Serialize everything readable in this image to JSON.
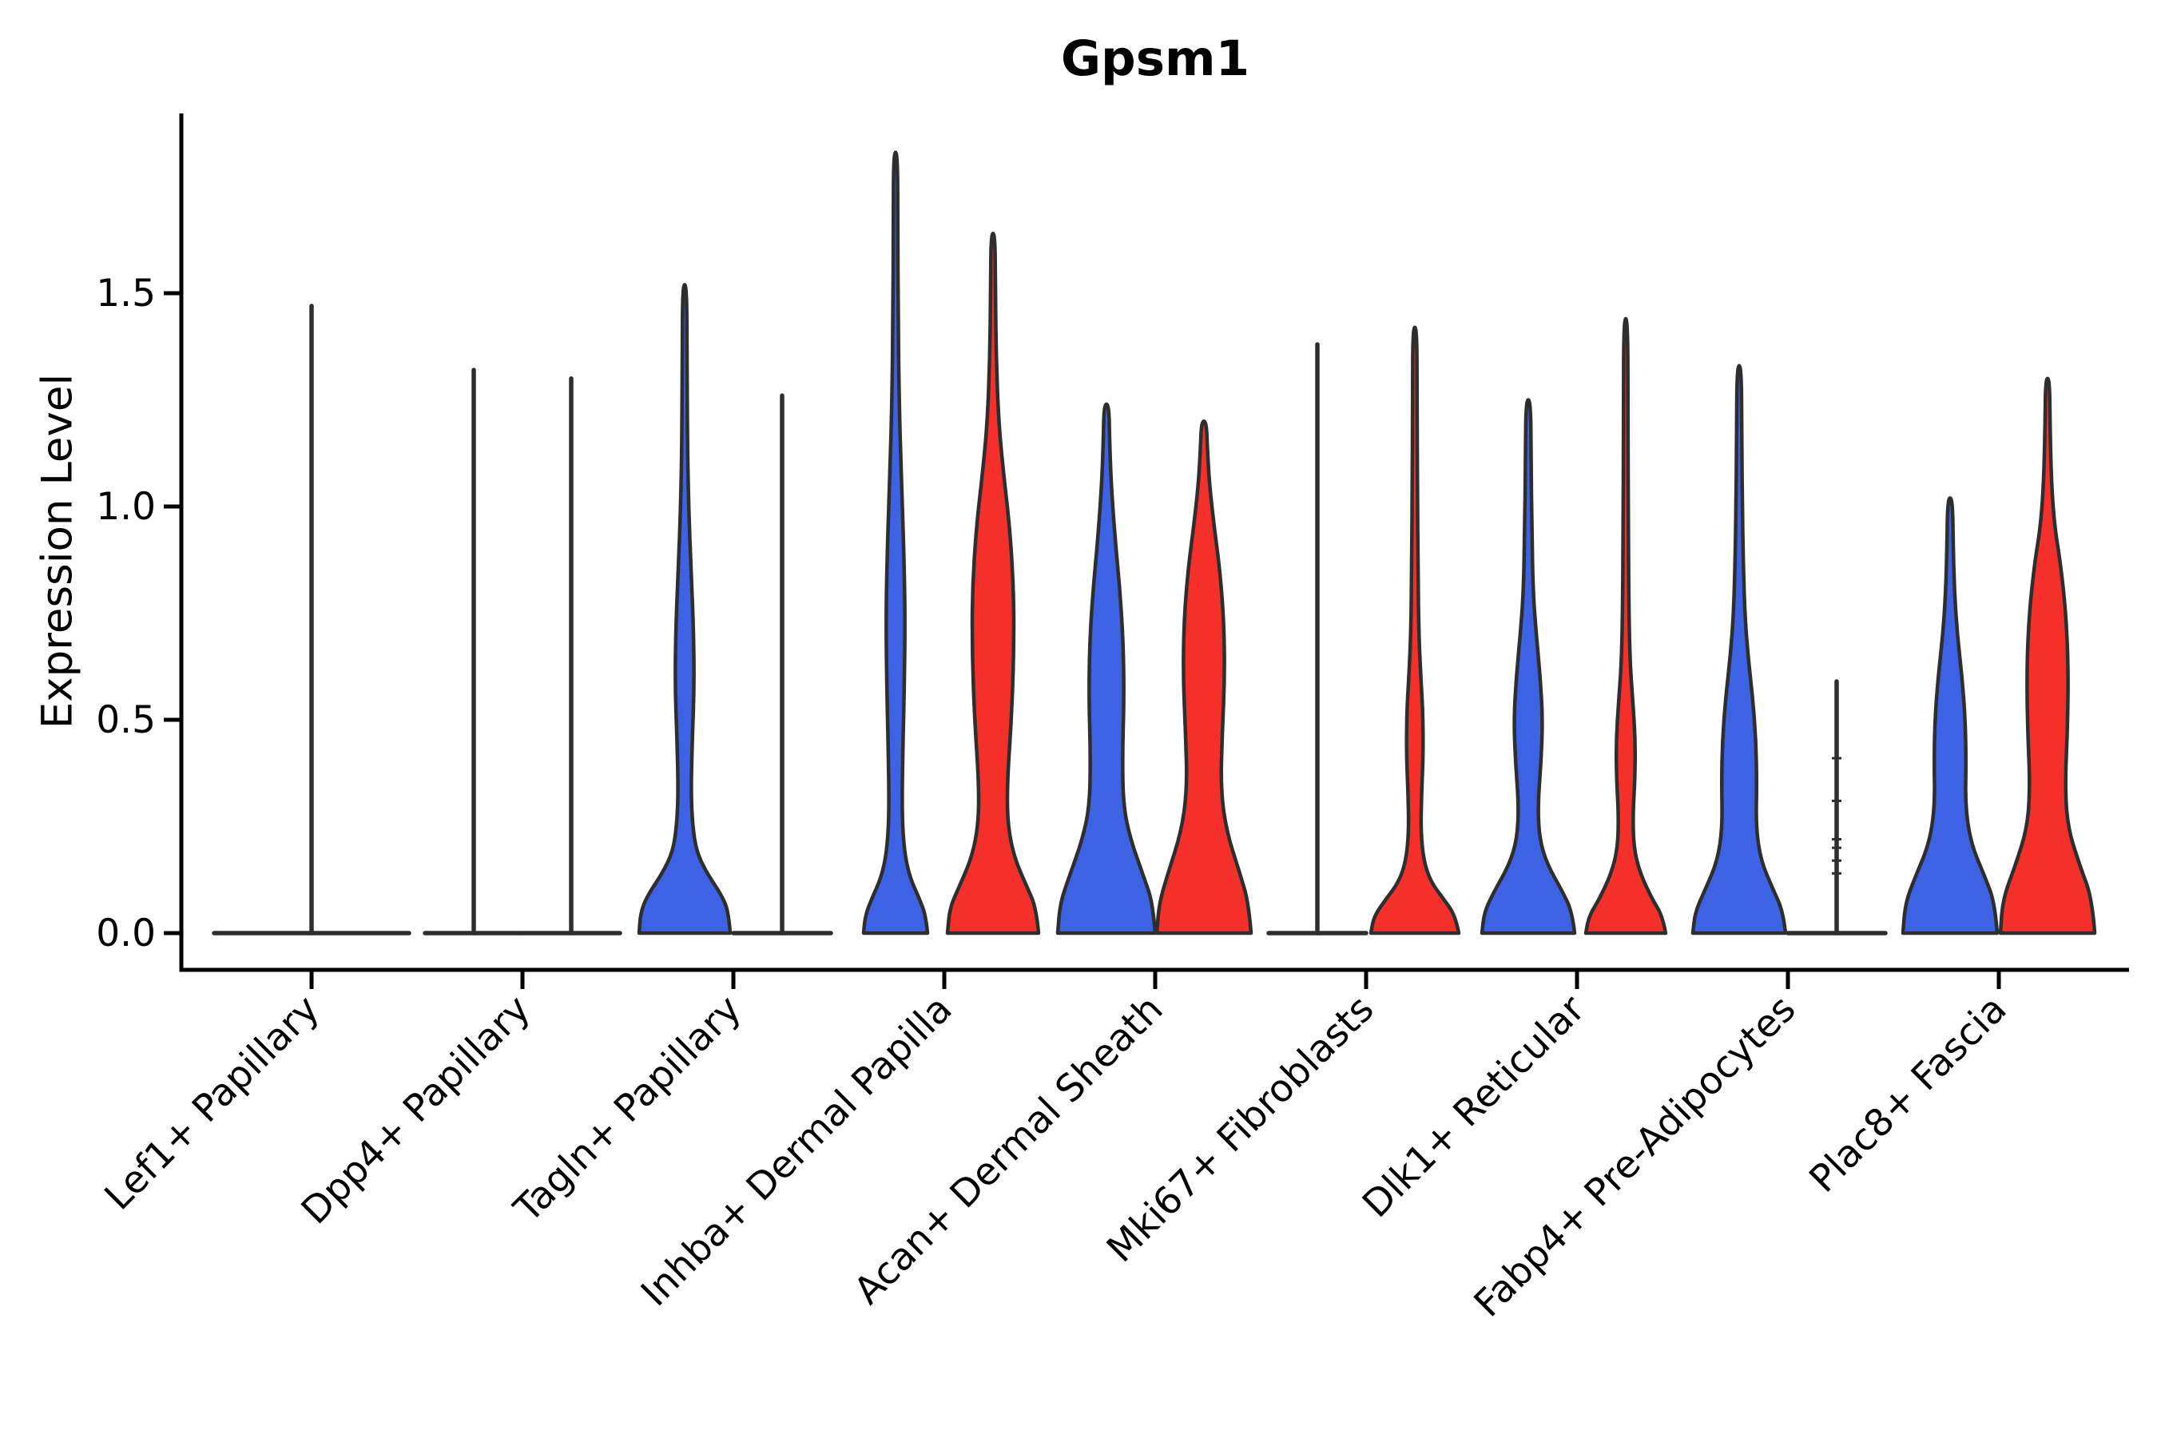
{
  "chart_data": {
    "type": "violin",
    "title": "Gpsm1",
    "xlabel": "",
    "ylabel": "Expression Level",
    "ylim": [
      0,
      1.93
    ],
    "yticks": [
      0,
      0.5,
      1.0,
      1.5
    ],
    "ytick_labels": [
      "0.0",
      "0.5",
      "1.0",
      "1.5"
    ],
    "grid": false,
    "legend": false,
    "colors": {
      "blue": "#3D62E3",
      "red": "#F5302A",
      "outline": "#2E2E2E"
    },
    "categories": [
      "Lef1+ Papillary",
      "Dpp4+ Papillary",
      "Tagln+ Papillary",
      "Inhba+ Dermal Papilla",
      "Acan+ Dermal Sheath",
      "Mki67+ Fibroblasts",
      "Dlk1+ Reticular",
      "Fabp4+ Pre-Adipocytes",
      "Plac8+ Fascia"
    ],
    "groups": [
      {
        "category": "Lef1+ Papillary",
        "violins": [
          {
            "series": "single",
            "position": "full",
            "kind": "flat",
            "max": 1.47
          }
        ]
      },
      {
        "category": "Dpp4+ Papillary",
        "violins": [
          {
            "series": "blue",
            "position": "left",
            "kind": "flat",
            "max": 1.32
          },
          {
            "series": "red",
            "position": "right",
            "kind": "flat",
            "max": 1.3
          }
        ]
      },
      {
        "category": "Tagln+ Papillary",
        "violins": [
          {
            "series": "blue",
            "position": "left",
            "kind": "shape",
            "max": 1.52,
            "profile": [
              [
                0,
                57
              ],
              [
                0.05,
                55
              ],
              [
                0.09,
                46
              ],
              [
                0.14,
                28
              ],
              [
                0.19,
                15
              ],
              [
                0.25,
                10
              ],
              [
                0.33,
                8
              ],
              [
                0.45,
                9.5
              ],
              [
                0.58,
                12
              ],
              [
                0.72,
                11
              ],
              [
                0.85,
                8
              ],
              [
                1.0,
                5
              ],
              [
                1.15,
                3.5
              ],
              [
                1.35,
                3
              ],
              [
                1.52,
                2.5
              ]
            ]
          },
          {
            "series": "red",
            "position": "right",
            "kind": "flat",
            "max": 1.26
          }
        ]
      },
      {
        "category": "Inhba+ Dermal Papilla",
        "violins": [
          {
            "series": "blue",
            "position": "left",
            "kind": "shape",
            "max": 1.83,
            "profile": [
              [
                0,
                40
              ],
              [
                0.04,
                38
              ],
              [
                0.08,
                30
              ],
              [
                0.13,
                18
              ],
              [
                0.19,
                11
              ],
              [
                0.28,
                8
              ],
              [
                0.42,
                9
              ],
              [
                0.58,
                11
              ],
              [
                0.75,
                12
              ],
              [
                0.92,
                10
              ],
              [
                1.08,
                7
              ],
              [
                1.25,
                4.5
              ],
              [
                1.45,
                3.2
              ],
              [
                1.65,
                2.8
              ],
              [
                1.83,
                2.5
              ]
            ]
          },
          {
            "series": "red",
            "position": "right",
            "kind": "shape",
            "max": 1.64,
            "profile": [
              [
                0,
                57
              ],
              [
                0.06,
                54
              ],
              [
                0.11,
                42
              ],
              [
                0.18,
                26
              ],
              [
                0.26,
                18
              ],
              [
                0.36,
                18
              ],
              [
                0.5,
                23
              ],
              [
                0.65,
                26
              ],
              [
                0.8,
                26
              ],
              [
                0.95,
                21
              ],
              [
                1.08,
                13
              ],
              [
                1.2,
                7
              ],
              [
                1.35,
                4
              ],
              [
                1.5,
                3
              ],
              [
                1.64,
                2.5
              ]
            ]
          }
        ]
      },
      {
        "category": "Acan+ Dermal Sheath",
        "violins": [
          {
            "series": "blue",
            "position": "left",
            "kind": "shape",
            "max": 1.24,
            "profile": [
              [
                0,
                61
              ],
              [
                0.07,
                58
              ],
              [
                0.13,
                47
              ],
              [
                0.22,
                30
              ],
              [
                0.3,
                21
              ],
              [
                0.42,
                20
              ],
              [
                0.55,
                22
              ],
              [
                0.68,
                21
              ],
              [
                0.8,
                17
              ],
              [
                0.92,
                11
              ],
              [
                1.05,
                6
              ],
              [
                1.15,
                4
              ],
              [
                1.24,
                3
              ]
            ]
          },
          {
            "series": "red",
            "position": "right",
            "kind": "shape",
            "max": 1.2,
            "profile": [
              [
                0,
                59
              ],
              [
                0.07,
                56
              ],
              [
                0.14,
                45
              ],
              [
                0.24,
                28
              ],
              [
                0.34,
                21
              ],
              [
                0.47,
                23
              ],
              [
                0.6,
                26
              ],
              [
                0.73,
                25
              ],
              [
                0.85,
                20
              ],
              [
                0.95,
                13
              ],
              [
                1.05,
                7
              ],
              [
                1.13,
                4.5
              ],
              [
                1.2,
                3
              ]
            ]
          }
        ]
      },
      {
        "category": "Mki67+ Fibroblasts",
        "violins": [
          {
            "series": "blue",
            "position": "left",
            "kind": "flat",
            "max": 1.38
          },
          {
            "series": "red",
            "position": "right",
            "kind": "shape",
            "max": 1.42,
            "profile": [
              [
                0,
                55
              ],
              [
                0.04,
                51
              ],
              [
                0.08,
                36
              ],
              [
                0.12,
                20
              ],
              [
                0.17,
                11
              ],
              [
                0.24,
                7.5
              ],
              [
                0.33,
                8.5
              ],
              [
                0.42,
                10.5
              ],
              [
                0.52,
                10
              ],
              [
                0.6,
                7.5
              ],
              [
                0.7,
                5
              ],
              [
                0.85,
                4
              ],
              [
                1.05,
                3.2
              ],
              [
                1.25,
                2.8
              ],
              [
                1.42,
                2.5
              ]
            ]
          }
        ]
      },
      {
        "category": "Dlk1+ Reticular",
        "violins": [
          {
            "series": "blue",
            "position": "left",
            "kind": "shape",
            "max": 1.25,
            "profile": [
              [
                0,
                58
              ],
              [
                0.05,
                55
              ],
              [
                0.1,
                42
              ],
              [
                0.16,
                24
              ],
              [
                0.22,
                14
              ],
              [
                0.3,
                12
              ],
              [
                0.4,
                16
              ],
              [
                0.5,
                18
              ],
              [
                0.6,
                15
              ],
              [
                0.7,
                10
              ],
              [
                0.8,
                6
              ],
              [
                0.95,
                4.5
              ],
              [
                1.1,
                3.5
              ],
              [
                1.25,
                3
              ]
            ]
          },
          {
            "series": "red",
            "position": "right",
            "kind": "shape",
            "max": 1.44,
            "profile": [
              [
                0,
                50
              ],
              [
                0.04,
                46
              ],
              [
                0.08,
                33
              ],
              [
                0.14,
                18
              ],
              [
                0.2,
                10
              ],
              [
                0.28,
                9
              ],
              [
                0.36,
                11.5
              ],
              [
                0.45,
                12
              ],
              [
                0.54,
                9
              ],
              [
                0.63,
                5.5
              ],
              [
                0.75,
                4
              ],
              [
                0.95,
                3.2
              ],
              [
                1.2,
                2.8
              ],
              [
                1.44,
                2.5
              ]
            ]
          }
        ]
      },
      {
        "category": "Fabp4+ Pre-Adipocytes",
        "violins": [
          {
            "series": "blue",
            "position": "left",
            "kind": "shape",
            "max": 1.33,
            "profile": [
              [
                0,
                58
              ],
              [
                0.05,
                55
              ],
              [
                0.1,
                43
              ],
              [
                0.17,
                27
              ],
              [
                0.25,
                21
              ],
              [
                0.35,
                22
              ],
              [
                0.45,
                21
              ],
              [
                0.55,
                17
              ],
              [
                0.65,
                11
              ],
              [
                0.75,
                7
              ],
              [
                0.88,
                5
              ],
              [
                1.0,
                4
              ],
              [
                1.15,
                3.2
              ],
              [
                1.33,
                2.8
              ]
            ]
          },
          {
            "series": "red",
            "position": "right",
            "kind": "flat",
            "max": 0.59,
            "points": [
              0.14,
              0.17,
              0.2,
              0.22,
              0.31,
              0.41
            ]
          }
        ]
      },
      {
        "category": "Plac8+ Fascia",
        "violins": [
          {
            "series": "blue",
            "position": "left",
            "kind": "shape",
            "max": 1.02,
            "profile": [
              [
                0,
                59
              ],
              [
                0.07,
                56
              ],
              [
                0.13,
                44
              ],
              [
                0.21,
                26
              ],
              [
                0.3,
                19
              ],
              [
                0.4,
                20
              ],
              [
                0.5,
                19
              ],
              [
                0.6,
                15
              ],
              [
                0.7,
                9
              ],
              [
                0.8,
                5.5
              ],
              [
                0.9,
                4
              ],
              [
                1.02,
                3
              ]
            ]
          },
          {
            "series": "red",
            "position": "right",
            "kind": "shape",
            "max": 1.3,
            "profile": [
              [
                0,
                59
              ],
              [
                0.08,
                56
              ],
              [
                0.16,
                40
              ],
              [
                0.25,
                25
              ],
              [
                0.35,
                22
              ],
              [
                0.48,
                25
              ],
              [
                0.62,
                26
              ],
              [
                0.75,
                23
              ],
              [
                0.87,
                16
              ],
              [
                0.95,
                9
              ],
              [
                1.05,
                5
              ],
              [
                1.18,
                3.2
              ],
              [
                1.3,
                2.5
              ]
            ]
          }
        ]
      }
    ]
  }
}
